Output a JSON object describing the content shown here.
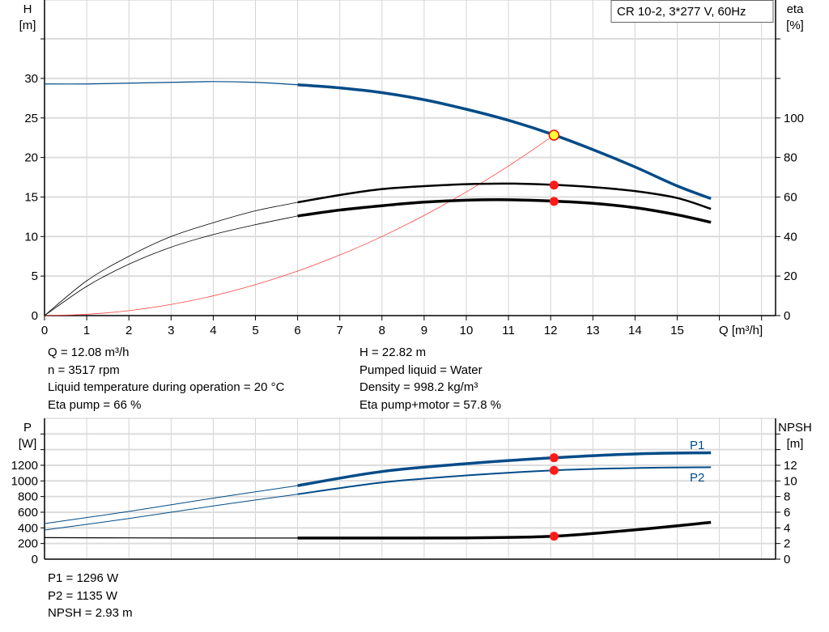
{
  "chart_data": [
    {
      "type": "line",
      "legend_box": "CR 10-2, 3*277 V, 60Hz",
      "xlabel": "Q [m³/h]",
      "ylabel_left": [
        "H",
        "[m]"
      ],
      "ylabel_right": [
        "eta",
        "[%]"
      ],
      "xlim": [
        0,
        17
      ],
      "ylim_left": [
        0,
        40
      ],
      "ylim_right": [
        0,
        160
      ],
      "x_ticks": [
        0,
        1,
        2,
        3,
        4,
        5,
        6,
        7,
        8,
        9,
        10,
        11,
        12,
        13,
        14,
        15
      ],
      "y_ticks_left": [
        0,
        5,
        10,
        15,
        20,
        25,
        30
      ],
      "y_ticks_right": [
        0,
        20,
        40,
        60,
        80,
        100
      ],
      "grid": true,
      "x": [
        0,
        1,
        2,
        3,
        4,
        5,
        6,
        7,
        8,
        9,
        10,
        11,
        12,
        13,
        14,
        15,
        15.8
      ],
      "series": [
        {
          "axis": "left",
          "color": "#004b87",
          "values": [
            29.3,
            29.3,
            29.4,
            29.5,
            29.6,
            29.5,
            29.2,
            28.8,
            28.2,
            27.3,
            26.1,
            24.7,
            23.0,
            21.0,
            18.8,
            16.4,
            14.8
          ]
        },
        {
          "axis": "right",
          "color": "#000000",
          "values": [
            0,
            17.6,
            30,
            40,
            47,
            53,
            57.3,
            61,
            64,
            65.5,
            66.5,
            66.8,
            66.2,
            65,
            63,
            59.5,
            54
          ]
        },
        {
          "axis": "right",
          "color": "#000000",
          "values": [
            0,
            14.8,
            26,
            34.6,
            41,
            46,
            50.4,
            53.4,
            55.6,
            57.4,
            58.4,
            58.6,
            58,
            56.8,
            54.6,
            51,
            47.2
          ]
        },
        {
          "axis": "left",
          "color": "#ff4040",
          "type": "system-curve",
          "values": [
            0,
            0.16,
            0.63,
            1.41,
            2.5,
            3.91,
            5.63,
            7.66,
            10.0,
            12.67,
            15.64,
            18.92,
            22.52,
            null,
            null,
            null,
            null
          ]
        }
      ],
      "duty_point": {
        "q": 12.08,
        "h": 22.82,
        "eta_pump": 66,
        "eta_total": 57.8
      }
    },
    {
      "type": "line",
      "ylabel_left": [
        "P",
        "[W]"
      ],
      "ylabel_right": [
        "NPSH",
        "[m]"
      ],
      "xlim": [
        0,
        17
      ],
      "ylim_left": [
        0,
        1800
      ],
      "ylim_right": [
        0,
        18
      ],
      "y_ticks_left": [
        0,
        200,
        400,
        600,
        800,
        1000,
        1200
      ],
      "y_ticks_right": [
        0,
        2,
        4,
        6,
        8,
        10,
        12
      ],
      "grid": true,
      "x": [
        0,
        2,
        4,
        6,
        8,
        10,
        12.08,
        14,
        15.8
      ],
      "series": [
        {
          "name": "P1",
          "axis": "left",
          "color": "#004b87",
          "values": [
            455,
            610,
            780,
            940,
            1120,
            1220,
            1296,
            1345,
            1360
          ]
        },
        {
          "name": "P2",
          "axis": "left",
          "color": "#004b87",
          "values": [
            372,
            520,
            680,
            830,
            980,
            1070,
            1135,
            1165,
            1175
          ]
        },
        {
          "axis": "right",
          "color": "#000000",
          "values": [
            2.75,
            2.72,
            2.7,
            2.7,
            2.7,
            2.72,
            2.93,
            3.75,
            4.7
          ]
        }
      ]
    }
  ],
  "info_top_left": [
    "Q = 12.08 m³/h",
    "n = 3517 rpm",
    "Liquid temperature during operation = 20 °C",
    "Eta pump = 66 %"
  ],
  "info_top_right": [
    "H = 22.82 m",
    "Pumped liquid = Water",
    "Density = 998.2 kg/m³",
    "Eta pump+motor = 57.8 %"
  ],
  "info_bottom": [
    "P1 = 1296 W",
    "P2 = 1135 W",
    "NPSH = 2.93 m"
  ]
}
